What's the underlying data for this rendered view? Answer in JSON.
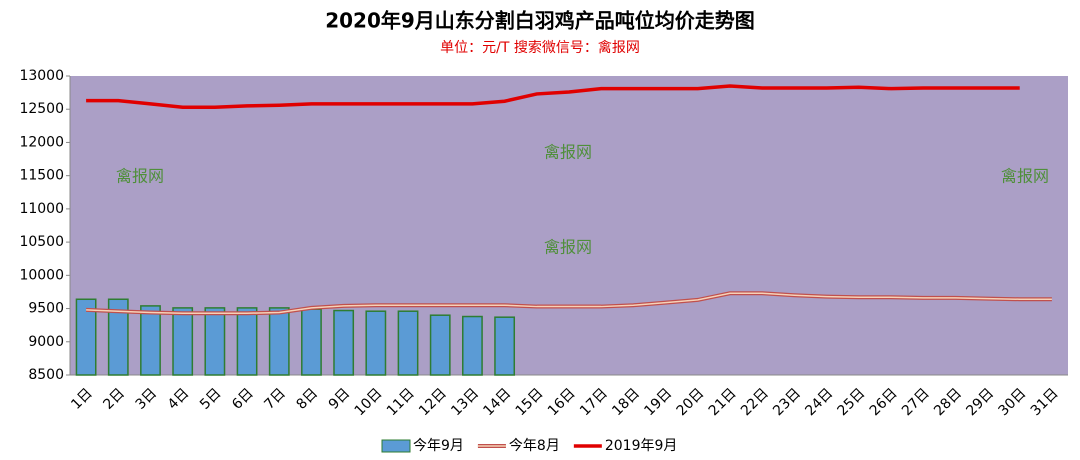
{
  "chart_data": {
    "type": "bar_line",
    "title": "2020年9月山东分割白羽鸡产品吨位均价走势图",
    "subtitle": "单位：元/T      搜索微信号：禽报网",
    "annotations": [
      "禽报网",
      "禽报网",
      "禽报网",
      "禽报网"
    ],
    "categories": [
      "1日",
      "2日",
      "3日",
      "4日",
      "5日",
      "6日",
      "7日",
      "8日",
      "9日",
      "10日",
      "11日",
      "12日",
      "13日",
      "14日",
      "15日",
      "16日",
      "17日",
      "18日",
      "19日",
      "20日",
      "21日",
      "22日",
      "23日",
      "24日",
      "25日",
      "26日",
      "27日",
      "28日",
      "29日",
      "30日",
      "31日"
    ],
    "series": [
      {
        "name": "今年9月",
        "type": "bar",
        "color": "#5b9bd5",
        "values": [
          9640,
          9640,
          9540,
          9510,
          9510,
          9510,
          9510,
          9490,
          9470,
          9460,
          9460,
          9400,
          9380,
          9370,
          null,
          null,
          null,
          null,
          null,
          null,
          null,
          null,
          null,
          null,
          null,
          null,
          null,
          null,
          null,
          null,
          null
        ]
      },
      {
        "name": "今年8月",
        "type": "line",
        "color": "#c0504d",
        "values": [
          9480,
          9460,
          9440,
          9430,
          9430,
          9430,
          9440,
          9510,
          9540,
          9550,
          9550,
          9550,
          9550,
          9550,
          9530,
          9530,
          9530,
          9550,
          9590,
          9630,
          9730,
          9730,
          9700,
          9680,
          9670,
          9670,
          9660,
          9660,
          9650,
          9640,
          9640
        ]
      },
      {
        "name": "2019年9月",
        "type": "line",
        "color": "#e00000",
        "values": [
          12630,
          12630,
          12580,
          12530,
          12530,
          12550,
          12560,
          12580,
          12580,
          12580,
          12580,
          12580,
          12580,
          12620,
          12730,
          12760,
          12810,
          12810,
          12810,
          12810,
          12850,
          12820,
          12820,
          12820,
          12830,
          12810,
          12820,
          12820,
          12820,
          12820,
          null
        ]
      }
    ],
    "ylim": [
      8500,
      13000
    ],
    "yticks": [
      8500,
      9000,
      9500,
      10000,
      10500,
      11000,
      11500,
      12000,
      12500,
      13000
    ],
    "plot_background": "#ab9fc6"
  }
}
